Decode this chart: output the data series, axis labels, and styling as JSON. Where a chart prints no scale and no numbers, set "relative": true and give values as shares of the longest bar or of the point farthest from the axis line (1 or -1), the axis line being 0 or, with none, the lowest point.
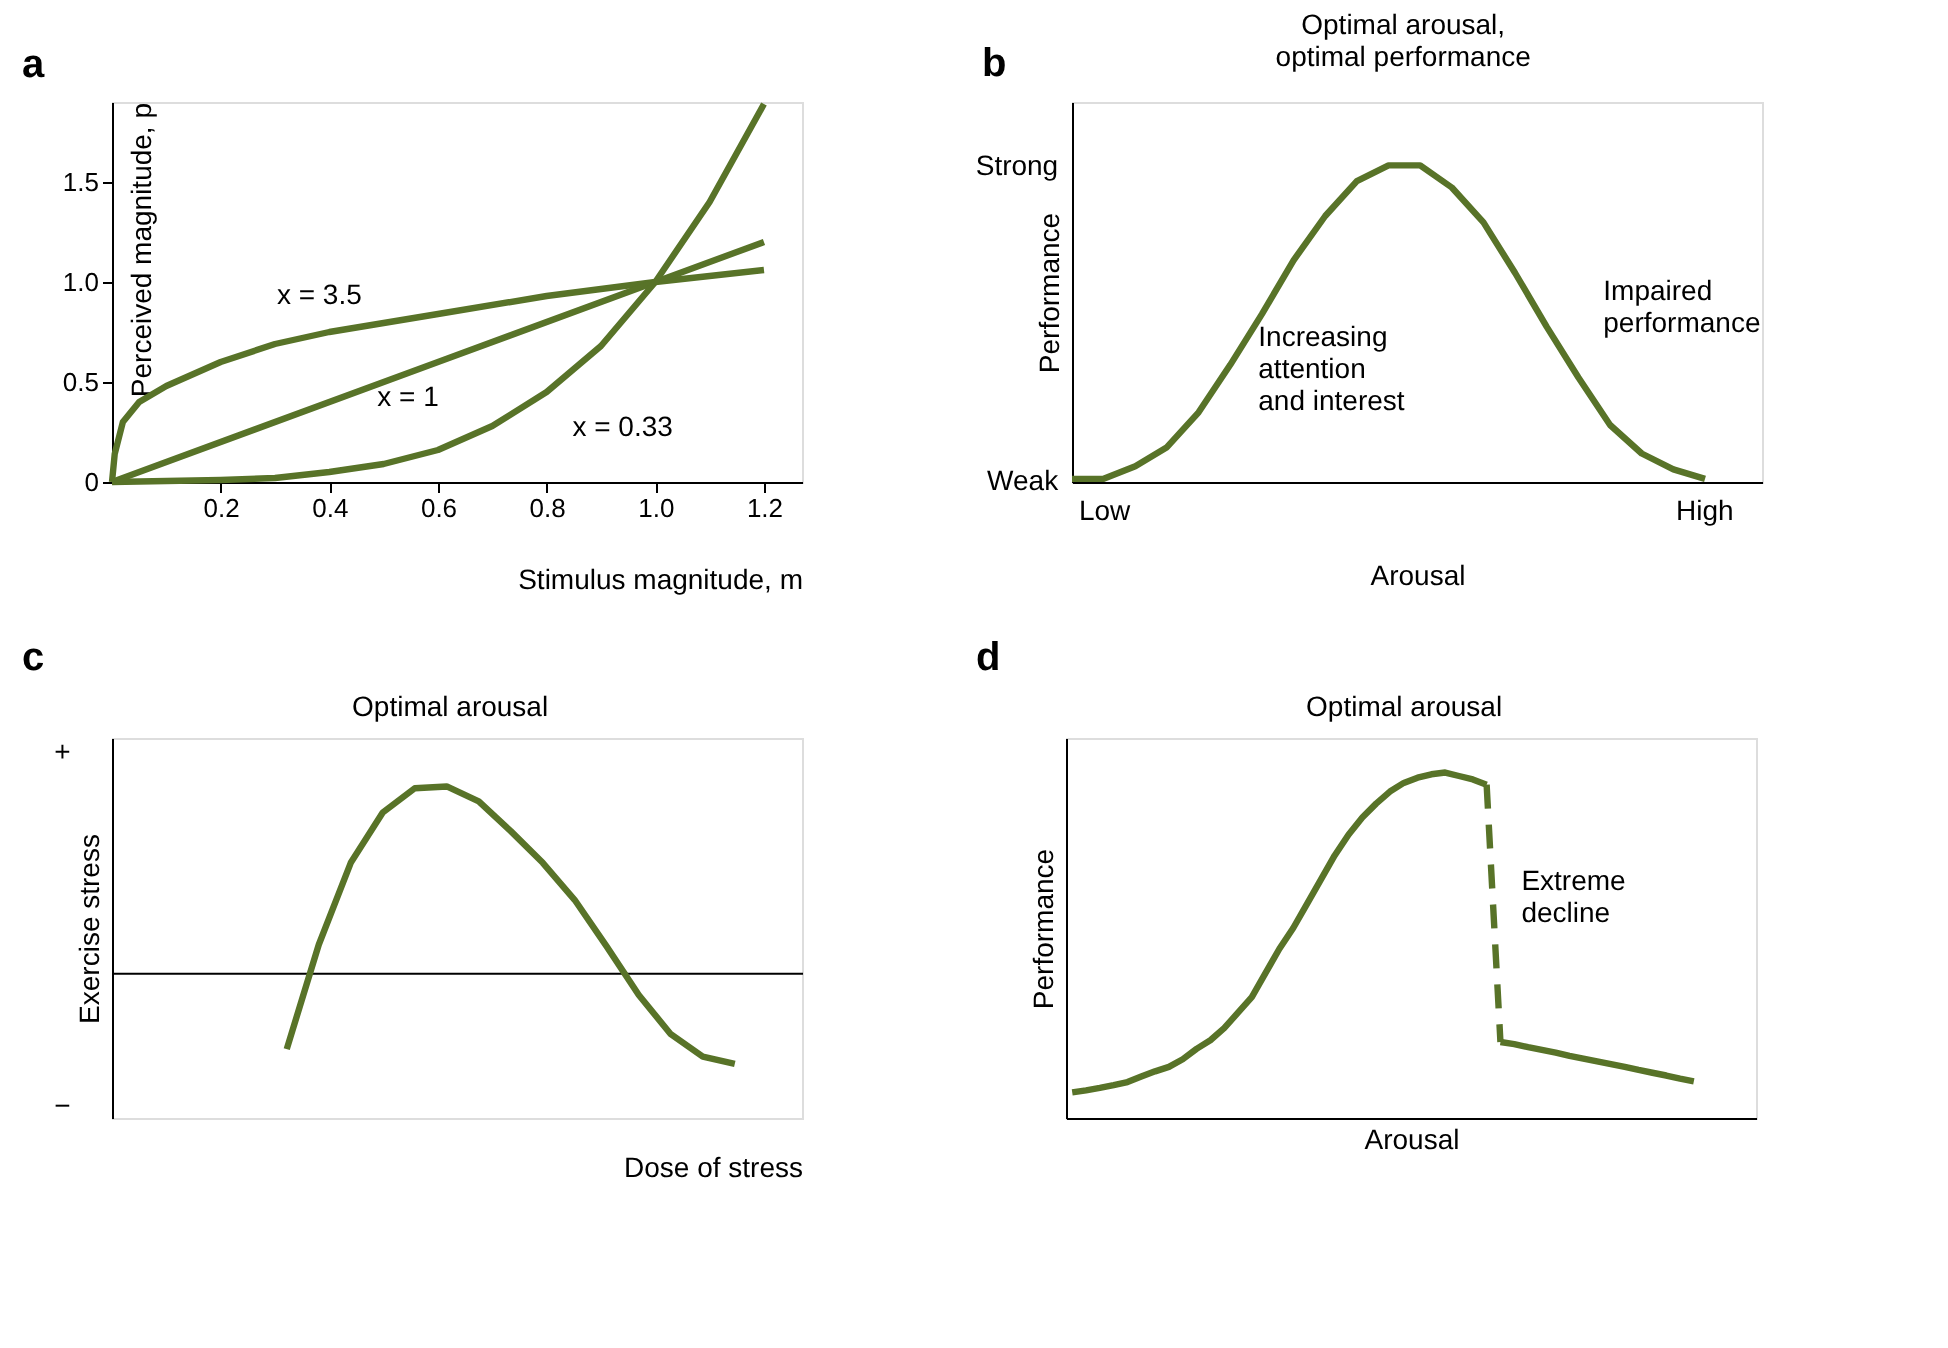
{
  "chart_data": [
    {
      "type": "line",
      "title": "a",
      "xlabel": "Stimulus magnitude, m",
      "ylabel": "Perceived magnitude, p",
      "xlim": [
        0,
        1.27
      ],
      "ylim": [
        0,
        1.9
      ],
      "xticks": [
        0.2,
        0.4,
        0.6,
        0.8,
        {
          "value": 1,
          "label": "1.0"
        },
        1.2
      ],
      "yticks": [
        0,
        0.5,
        {
          "value": 1,
          "label": "1.0"
        },
        1.5
      ],
      "marker": "none",
      "series": [
        {
          "name": "x = 3.5",
          "color": "#587328",
          "x": [
            0,
            0.005,
            0.02,
            0.05,
            0.1,
            0.2,
            0.3,
            0.4,
            0.6,
            0.8,
            1.0,
            1.2
          ],
          "values": [
            0,
            0.14,
            0.3,
            0.4,
            0.48,
            0.6,
            0.69,
            0.75,
            0.84,
            0.93,
            1.0,
            1.06
          ]
        },
        {
          "name": "x = 1",
          "color": "#587328",
          "x": [
            0,
            0.6,
            1.0,
            1.2
          ],
          "values": [
            0,
            0.6,
            1.0,
            1.2
          ]
        },
        {
          "name": "x = 0.33",
          "color": "#587328",
          "x": [
            0,
            0.2,
            0.3,
            0.4,
            0.5,
            0.6,
            0.7,
            0.8,
            0.9,
            1.0,
            1.1,
            1.2
          ],
          "values": [
            0,
            0.01,
            0.02,
            0.05,
            0.09,
            0.16,
            0.28,
            0.45,
            0.68,
            1.0,
            1.4,
            1.89
          ]
        }
      ]
    },
    {
      "type": "line",
      "title": "b",
      "xlabel": "Arousal",
      "ylabel": "Performance",
      "relative": true,
      "marker": "none",
      "annotations": [
        "Optimal arousal,\noptimal performance",
        "Increasing\nattention\nand interest",
        "Impaired\nperformance",
        "Strong",
        "Weak",
        "Low",
        "High"
      ],
      "categories": [
        null,
        null,
        null,
        null,
        null,
        null,
        null,
        null,
        null,
        null,
        null,
        null,
        null,
        null,
        null,
        null,
        null,
        null,
        null,
        null,
        null
      ],
      "series": [
        {
          "color": "#587328",
          "values": [
            0.01,
            0.01,
            0.05,
            0.11,
            0.22,
            0.37,
            0.53,
            0.7,
            0.84,
            0.95,
            1,
            1,
            0.93,
            0.82,
            0.66,
            0.49,
            0.33,
            0.18,
            0.09,
            0.04,
            0.01
          ]
        }
      ]
    },
    {
      "type": "line",
      "title": "c",
      "xlabel": "Dose of stress",
      "ylabel": "Exercise stress",
      "relative": true,
      "marker": "none",
      "annotations": [
        "Optimal arousal",
        "+",
        "−"
      ],
      "categories": [
        null,
        null,
        null,
        null,
        null,
        null,
        null,
        null,
        null,
        null,
        null,
        null,
        null,
        null,
        null
      ],
      "series": [
        {
          "color": "#587328",
          "values": [
            -0.41,
            0.15,
            0.59,
            0.86,
            0.99,
            1,
            0.92,
            0.76,
            0.59,
            0.39,
            0.14,
            -0.12,
            -0.33,
            -0.45,
            -0.49
          ]
        }
      ]
    },
    {
      "type": "line",
      "title": "d",
      "xlabel": "Arousal",
      "ylabel": "Performance",
      "relative": true,
      "marker": "none",
      "annotations": [
        "Optimal arousal",
        "Extreme\ndecline"
      ],
      "categories": [
        null,
        null,
        null,
        null,
        null,
        null,
        null,
        null,
        null,
        null,
        null,
        null,
        null,
        null,
        null,
        null,
        null,
        null,
        null,
        null,
        null,
        null,
        null,
        null,
        null,
        null,
        null,
        null,
        null,
        null,
        null,
        null,
        null,
        null,
        null,
        null,
        null,
        null,
        null,
        null,
        null,
        null,
        null,
        null,
        null,
        null
      ],
      "series": [
        {
          "color": "#587328",
          "values": [
            0.074,
            0.08,
            0.087,
            0.095,
            0.104,
            0.12,
            0.135,
            0.148,
            0.17,
            0.2,
            0.225,
            0.26,
            0.305,
            0.35,
            0.42,
            0.49,
            0.55,
            0.62,
            0.69,
            0.76,
            0.82,
            0.87,
            0.91,
            0.945,
            0.97,
            0.985,
            0.995,
            1.0,
            0.99,
            0.98,
            0.965,
            null,
            null,
            null,
            null,
            null,
            null,
            null,
            null,
            null,
            null,
            null,
            null,
            null,
            null,
            null
          ]
        },
        {
          "color": "#587328",
          "line_style": "dashed",
          "values": [
            null,
            null,
            null,
            null,
            null,
            null,
            null,
            null,
            null,
            null,
            null,
            null,
            null,
            null,
            null,
            null,
            null,
            null,
            null,
            null,
            null,
            null,
            null,
            null,
            null,
            null,
            null,
            null,
            null,
            null,
            0.965,
            0.22,
            null,
            null,
            null,
            null,
            null,
            null,
            null,
            null,
            null,
            null,
            null,
            null,
            null,
            null
          ]
        },
        {
          "color": "#587328",
          "values": [
            null,
            null,
            null,
            null,
            null,
            null,
            null,
            null,
            null,
            null,
            null,
            null,
            null,
            null,
            null,
            null,
            null,
            null,
            null,
            null,
            null,
            null,
            null,
            null,
            null,
            null,
            null,
            null,
            null,
            null,
            null,
            0.22,
            0.214,
            0.205,
            0.197,
            0.189,
            0.18,
            0.172,
            0.164,
            0.156,
            0.148,
            0.139,
            0.131,
            0.123,
            0.114,
            0.106
          ]
        }
      ]
    }
  ]
}
